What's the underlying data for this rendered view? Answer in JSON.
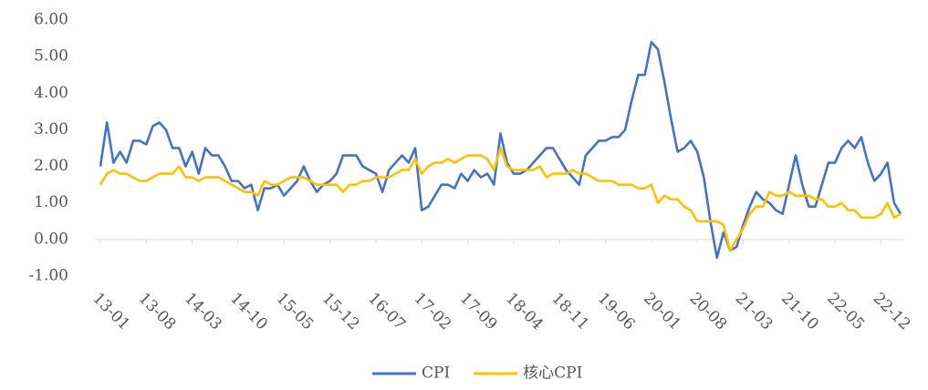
{
  "chart_data": {
    "type": "line",
    "categories": [
      "13-01",
      null,
      null,
      null,
      null,
      null,
      null,
      "13-08",
      null,
      null,
      null,
      null,
      null,
      null,
      "14-03",
      null,
      null,
      null,
      null,
      null,
      null,
      "14-10",
      null,
      null,
      null,
      null,
      null,
      null,
      "15-05",
      null,
      null,
      null,
      null,
      null,
      null,
      "15-12",
      null,
      null,
      null,
      null,
      null,
      null,
      "16-07",
      null,
      null,
      null,
      null,
      null,
      null,
      "17-02",
      null,
      null,
      null,
      null,
      null,
      null,
      "17-09",
      null,
      null,
      null,
      null,
      null,
      null,
      "18-04",
      null,
      null,
      null,
      null,
      null,
      null,
      "18-11",
      null,
      null,
      null,
      null,
      null,
      null,
      "19-06",
      null,
      null,
      null,
      null,
      null,
      null,
      "20-01",
      null,
      null,
      null,
      null,
      null,
      null,
      "20-08",
      null,
      null,
      null,
      null,
      null,
      null,
      "21-03",
      null,
      null,
      null,
      null,
      null,
      null,
      "21-10",
      null,
      null,
      null,
      null,
      null,
      null,
      "22-05",
      null,
      null,
      null,
      null,
      null,
      null,
      "22-12",
      null,
      null,
      null
    ],
    "series": [
      {
        "name": "CPI",
        "color": "#4472c4",
        "values": [
          2.0,
          3.2,
          2.1,
          2.4,
          2.1,
          2.7,
          2.7,
          2.6,
          3.1,
          3.2,
          3.0,
          2.5,
          2.5,
          2.0,
          2.4,
          1.8,
          2.5,
          2.3,
          2.3,
          2.0,
          1.6,
          1.6,
          1.4,
          1.5,
          0.8,
          1.4,
          1.4,
          1.5,
          1.2,
          1.4,
          1.6,
          2.0,
          1.6,
          1.3,
          1.5,
          1.6,
          1.8,
          2.3,
          2.3,
          2.3,
          2.0,
          1.9,
          1.8,
          1.3,
          1.9,
          2.1,
          2.3,
          2.1,
          2.5,
          0.8,
          0.9,
          1.2,
          1.5,
          1.5,
          1.4,
          1.8,
          1.6,
          1.9,
          1.7,
          1.8,
          1.5,
          2.9,
          2.1,
          1.8,
          1.8,
          1.9,
          2.1,
          2.3,
          2.5,
          2.5,
          2.2,
          1.9,
          1.7,
          1.5,
          2.3,
          2.5,
          2.7,
          2.7,
          2.8,
          2.8,
          3.0,
          3.8,
          4.5,
          4.5,
          5.4,
          5.2,
          4.3,
          3.3,
          2.4,
          2.5,
          2.7,
          2.4,
          1.7,
          0.5,
          -0.5,
          0.2,
          -0.3,
          -0.2,
          0.4,
          0.9,
          1.3,
          1.1,
          1.0,
          0.8,
          0.7,
          1.5,
          2.3,
          1.5,
          0.9,
          0.9,
          1.5,
          2.1,
          2.1,
          2.5,
          2.7,
          2.5,
          2.8,
          2.1,
          1.6,
          1.8,
          2.1,
          1.0,
          0.7
        ]
      },
      {
        "name": "核心CPI",
        "color": "#ffc000",
        "values": [
          1.5,
          1.8,
          1.9,
          1.8,
          1.8,
          1.7,
          1.6,
          1.6,
          1.7,
          1.8,
          1.8,
          1.8,
          2.0,
          1.7,
          1.7,
          1.6,
          1.7,
          1.7,
          1.7,
          1.6,
          1.5,
          1.4,
          1.3,
          1.3,
          1.2,
          1.6,
          1.5,
          1.5,
          1.6,
          1.7,
          1.7,
          1.7,
          1.6,
          1.5,
          1.5,
          1.5,
          1.5,
          1.3,
          1.5,
          1.5,
          1.6,
          1.6,
          1.7,
          1.7,
          1.7,
          1.8,
          1.9,
          1.9,
          2.2,
          1.8,
          2.0,
          2.1,
          2.1,
          2.2,
          2.1,
          2.2,
          2.3,
          2.3,
          2.3,
          2.2,
          1.9,
          2.5,
          2.0,
          1.9,
          1.9,
          1.9,
          1.9,
          2.0,
          1.7,
          1.8,
          1.8,
          1.8,
          1.9,
          1.8,
          1.8,
          1.7,
          1.6,
          1.6,
          1.6,
          1.5,
          1.5,
          1.5,
          1.4,
          1.4,
          1.5,
          1.0,
          1.2,
          1.1,
          1.1,
          0.9,
          0.8,
          0.5,
          0.5,
          0.5,
          0.5,
          0.4,
          -0.3,
          0.0,
          0.3,
          0.7,
          0.9,
          0.9,
          1.3,
          1.2,
          1.2,
          1.3,
          1.2,
          1.2,
          1.2,
          1.1,
          1.1,
          0.9,
          0.9,
          1.0,
          0.8,
          0.8,
          0.6,
          0.6,
          0.6,
          0.7,
          1.0,
          0.6,
          0.7
        ]
      }
    ],
    "ylim": [
      -1,
      6
    ],
    "yticks": [
      {
        "value": -1,
        "label": "-1.00"
      },
      {
        "value": 0,
        "label": "0.00"
      },
      {
        "value": 1,
        "label": "1.00"
      },
      {
        "value": 2,
        "label": "2.00"
      },
      {
        "value": 3,
        "label": "3.00"
      },
      {
        "value": 4,
        "label": "4.00"
      },
      {
        "value": 5,
        "label": "5.00"
      },
      {
        "value": 6,
        "label": "6.00"
      }
    ],
    "grid": false,
    "legend": "bottom"
  }
}
